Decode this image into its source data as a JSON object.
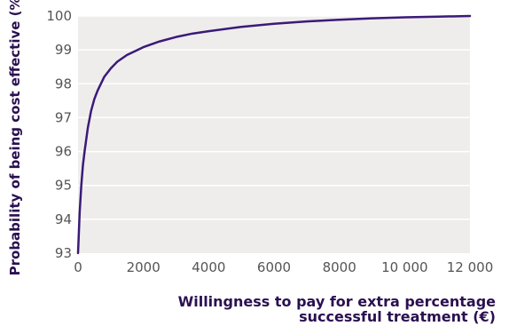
{
  "chart_data": {
    "type": "line",
    "title": "",
    "xlabel": "Willingness to pay for extra percentage successful treatment (€)",
    "xlabel_lines": [
      "Willingness to pay for extra percentage",
      "successful treatment (€)"
    ],
    "ylabel": "Probability of being cost effective (%)",
    "xlim": [
      0,
      12000
    ],
    "ylim": [
      93,
      100
    ],
    "x_ticks": [
      0,
      2000,
      4000,
      6000,
      8000,
      10000,
      12000
    ],
    "x_tick_labels": [
      "0",
      "2000",
      "4000",
      "6000",
      "8000",
      "10 000",
      "12 000"
    ],
    "y_ticks": [
      93,
      94,
      95,
      96,
      97,
      98,
      99,
      100
    ],
    "y_tick_labels": [
      "93",
      "94",
      "95",
      "96",
      "97",
      "98",
      "99",
      "100"
    ],
    "grid": true,
    "series": [
      {
        "x": [
          0,
          50,
          100,
          150,
          200,
          300,
          400,
          500,
          600,
          800,
          1000,
          1200,
          1500,
          2000,
          2500,
          3000,
          3500,
          4000,
          5000,
          6000,
          7000,
          8000,
          9000,
          10000,
          11000,
          12000
        ],
        "y": [
          92.9,
          94.2,
          95.0,
          95.6,
          96.0,
          96.7,
          97.2,
          97.55,
          97.8,
          98.2,
          98.45,
          98.65,
          98.85,
          99.08,
          99.25,
          99.38,
          99.48,
          99.55,
          99.68,
          99.77,
          99.84,
          99.89,
          99.93,
          99.96,
          99.98,
          100.0
        ]
      }
    ]
  },
  "colors": {
    "plot_background": "#efedec",
    "gridline": "#ffffff",
    "line": "#3b1a78",
    "axis_title": "#2a1050",
    "tick_label": "#555555"
  }
}
